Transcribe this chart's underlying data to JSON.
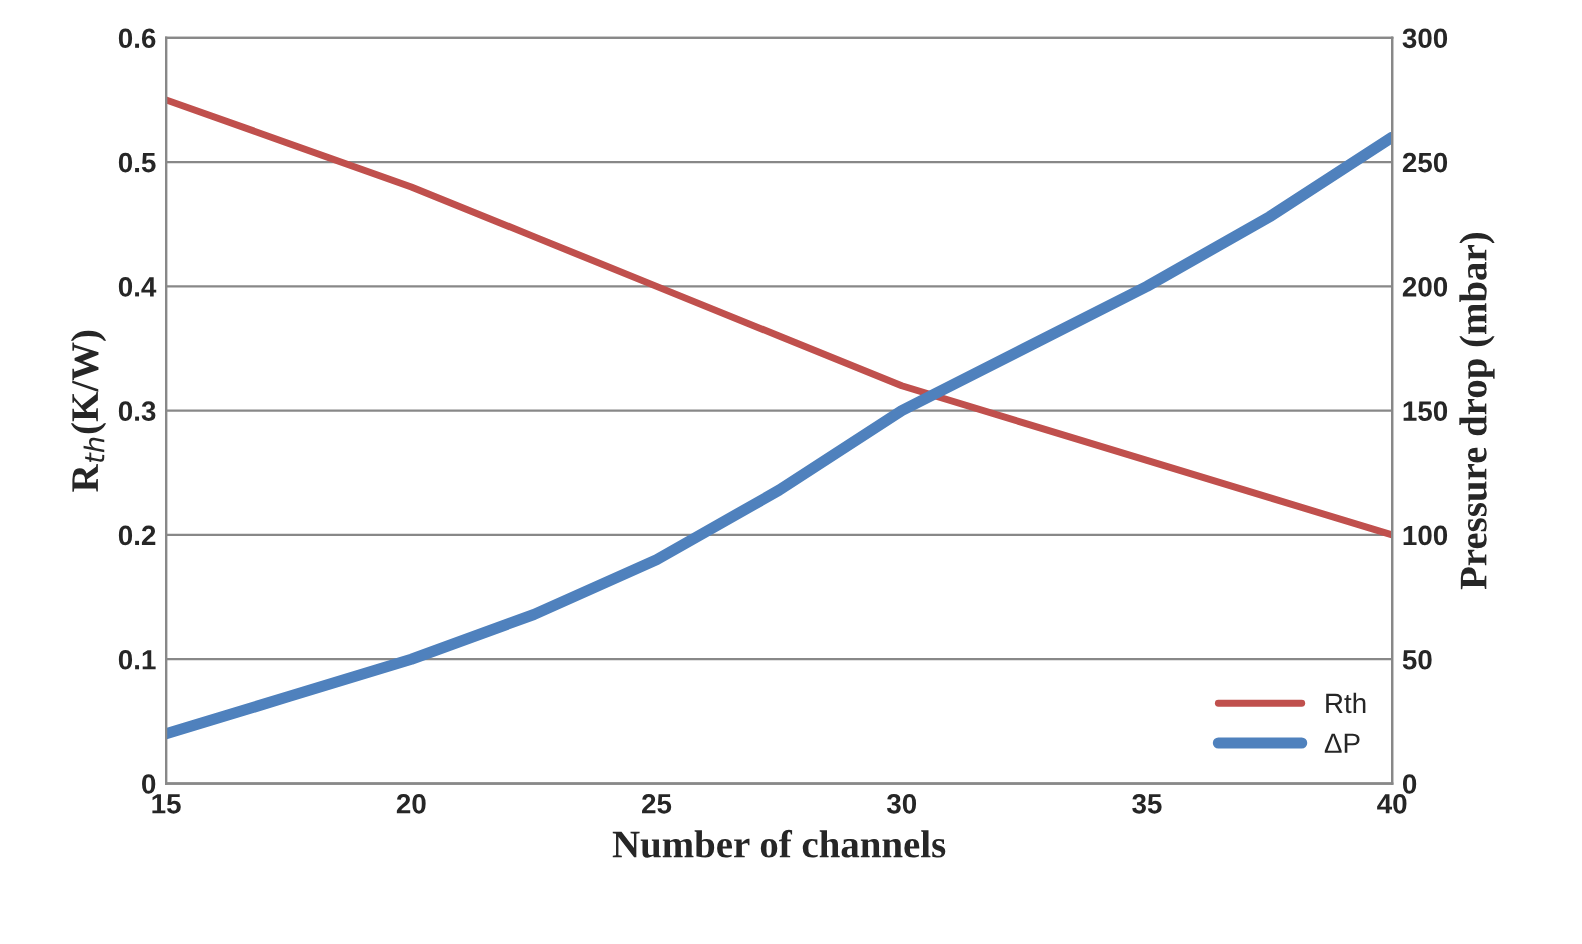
{
  "chart_data": {
    "type": "line",
    "xlabel": "Number of channels",
    "ylabel": "R$_{th}$(K/W)",
    "y2label": "Pressure drop (mbar)",
    "series": [
      {
        "name": "Rth",
        "color": "#c0504d",
        "x": [
          15,
          17.5,
          20,
          22.5,
          25,
          27.5,
          30,
          32.5,
          35,
          37.5,
          40
        ],
        "values": [
          0.55,
          0.515,
          0.48,
          0.44,
          0.4,
          0.36,
          0.32,
          0.29,
          0.26,
          0.23,
          0.2
        ]
      },
      {
        "name": "ΔP",
        "color": "#4f81bd",
        "axis": "y2",
        "x": [
          15,
          17.5,
          20,
          22.5,
          25,
          27.5,
          30,
          32.5,
          35,
          37.5,
          40
        ],
        "values": [
          20,
          35,
          50,
          68,
          90,
          118,
          150,
          175,
          200,
          228,
          260
        ]
      }
    ],
    "xlim": [
      15,
      40
    ],
    "xticks": [
      15,
      20,
      25,
      30,
      35,
      40
    ],
    "ylim": [
      0,
      0.6
    ],
    "yticks": [
      0,
      0.1,
      0.2,
      0.3,
      0.4,
      0.5,
      0.6
    ],
    "y2lim": [
      0,
      300
    ],
    "y2ticks": [
      0,
      50,
      100,
      150,
      200,
      250,
      300
    ],
    "grid": "y",
    "legend": "bottom right",
    "marker": "none",
    "line_style": "solid"
  }
}
